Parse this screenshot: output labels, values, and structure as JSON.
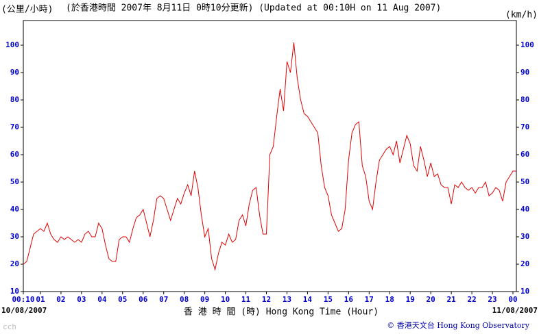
{
  "chart_data": {
    "type": "line",
    "title": "(於香港時間 2007年 8月11日 0時10分更新) (Updated at 00:10H on 11 Aug 2007)",
    "y_unit_left": "(公里/小時)",
    "y_unit_right": "(km/h)",
    "x_label": "香 港 時 間 (時)   Hong Kong Time (Hour)",
    "start_date": "10/08/2007",
    "end_date": "11/08/2007",
    "credit": "© 香港天文台 Hong Kong Observatory",
    "watermark": "cch",
    "xlim": [
      10,
      1450
    ],
    "ylim": [
      10,
      109
    ],
    "xticks": [
      {
        "value": 10,
        "label": "00:10"
      },
      {
        "value": 60,
        "label": "01"
      },
      {
        "value": 120,
        "label": "02"
      },
      {
        "value": 180,
        "label": "03"
      },
      {
        "value": 240,
        "label": "04"
      },
      {
        "value": 300,
        "label": "05"
      },
      {
        "value": 360,
        "label": "06"
      },
      {
        "value": 420,
        "label": "07"
      },
      {
        "value": 480,
        "label": "08"
      },
      {
        "value": 540,
        "label": "09"
      },
      {
        "value": 600,
        "label": "10"
      },
      {
        "value": 660,
        "label": "11"
      },
      {
        "value": 720,
        "label": "12"
      },
      {
        "value": 780,
        "label": "13"
      },
      {
        "value": 840,
        "label": "14"
      },
      {
        "value": 900,
        "label": "15"
      },
      {
        "value": 960,
        "label": "16"
      },
      {
        "value": 1020,
        "label": "17"
      },
      {
        "value": 1080,
        "label": "18"
      },
      {
        "value": 1140,
        "label": "19"
      },
      {
        "value": 1200,
        "label": "20"
      },
      {
        "value": 1260,
        "label": "21"
      },
      {
        "value": 1320,
        "label": "22"
      },
      {
        "value": 1380,
        "label": "23"
      },
      {
        "value": 1440,
        "label": "00"
      }
    ],
    "yticks": [
      10,
      20,
      30,
      40,
      50,
      60,
      70,
      80,
      90,
      100
    ],
    "series": [
      {
        "color": "#e00000",
        "x": [
          10,
          20,
          30,
          40,
          50,
          60,
          70,
          80,
          90,
          100,
          110,
          120,
          130,
          140,
          150,
          160,
          170,
          180,
          190,
          200,
          210,
          220,
          230,
          240,
          250,
          260,
          270,
          280,
          290,
          300,
          310,
          320,
          330,
          340,
          350,
          360,
          370,
          380,
          390,
          400,
          410,
          420,
          430,
          440,
          450,
          460,
          470,
          480,
          490,
          500,
          510,
          520,
          530,
          540,
          550,
          560,
          570,
          580,
          590,
          600,
          610,
          620,
          630,
          640,
          650,
          660,
          670,
          680,
          690,
          700,
          710,
          720,
          730,
          740,
          750,
          760,
          770,
          780,
          790,
          800,
          810,
          820,
          830,
          840,
          850,
          860,
          870,
          880,
          890,
          900,
          910,
          920,
          930,
          940,
          950,
          960,
          970,
          980,
          990,
          1000,
          1010,
          1020,
          1030,
          1040,
          1050,
          1060,
          1070,
          1080,
          1090,
          1100,
          1110,
          1120,
          1130,
          1140,
          1150,
          1160,
          1170,
          1180,
          1190,
          1200,
          1210,
          1220,
          1230,
          1240,
          1250,
          1260,
          1270,
          1280,
          1290,
          1300,
          1310,
          1320,
          1330,
          1340,
          1350,
          1360,
          1370,
          1380,
          1390,
          1400,
          1410,
          1420,
          1430,
          1440,
          1450
        ],
        "values": [
          20,
          21,
          26,
          31,
          32,
          33,
          32,
          35,
          31,
          29,
          28,
          30,
          29,
          30,
          29,
          28,
          29,
          28,
          31,
          32,
          30,
          30,
          35,
          33,
          27,
          22,
          21,
          21,
          29,
          30,
          30,
          28,
          33,
          37,
          38,
          40,
          35,
          30,
          36,
          44,
          45,
          44,
          40,
          36,
          40,
          44,
          42,
          46,
          49,
          45,
          54,
          48,
          38,
          30,
          33,
          22,
          18,
          24,
          28,
          27,
          31,
          28,
          29,
          36,
          38,
          34,
          42,
          47,
          48,
          38,
          31,
          31,
          60,
          63,
          74,
          84,
          76,
          94,
          90,
          101,
          88,
          80,
          75,
          74,
          72,
          70,
          68,
          56,
          48,
          45,
          38,
          35,
          32,
          33,
          40,
          58,
          68,
          71,
          72,
          56,
          52,
          43,
          40,
          50,
          58,
          60,
          62,
          63,
          60,
          65,
          57,
          62,
          67,
          64,
          56,
          54,
          63,
          58,
          52,
          57,
          52,
          53,
          49,
          48,
          48,
          42,
          49,
          48,
          50,
          48,
          47,
          48,
          46,
          48,
          48,
          50,
          45,
          46,
          48,
          47,
          43,
          50,
          52,
          54,
          54
        ]
      }
    ]
  }
}
